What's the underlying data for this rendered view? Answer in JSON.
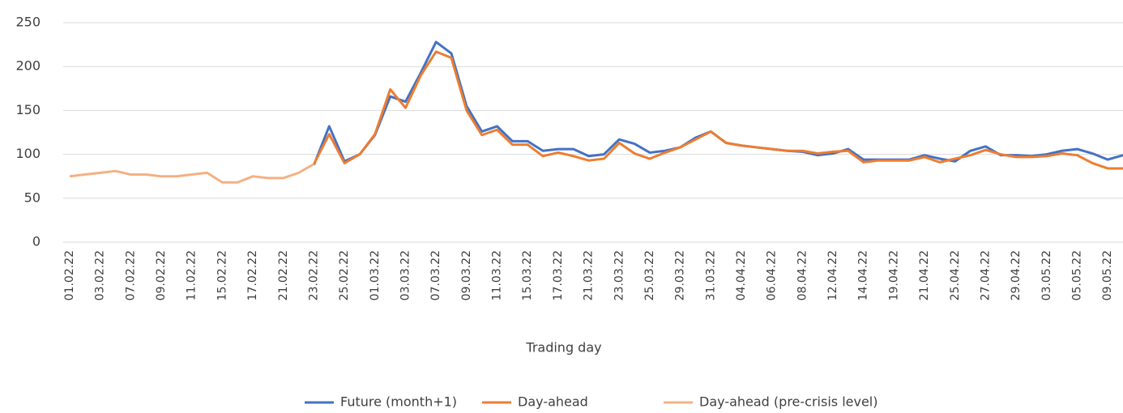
{
  "chart_data": {
    "type": "line",
    "x_label": "Trading day",
    "categories": [
      "01.02.22",
      null,
      "03.02.22",
      null,
      "07.02.22",
      null,
      "09.02.22",
      null,
      "11.02.22",
      null,
      "15.02.22",
      null,
      "17.02.22",
      null,
      "21.02.22",
      null,
      "23.02.22",
      null,
      "25.02.22",
      null,
      "01.03.22",
      null,
      "03.03.22",
      null,
      "07.03.22",
      null,
      "09.03.22",
      null,
      "11.03.22",
      null,
      "15.03.22",
      null,
      "17.03.22",
      null,
      "21.03.22",
      null,
      "23.03.22",
      null,
      "25.03.22",
      null,
      "29.03.22",
      null,
      "31.03.22",
      null,
      "04.04.22",
      null,
      "06.04.22",
      null,
      "08.04.22",
      null,
      "12.04.22",
      null,
      "14.04.22",
      null,
      "19.04.22",
      null,
      "21.04.22",
      null,
      "25.04.22",
      null,
      "27.04.22",
      null,
      "29.04.22",
      null,
      "03.05.22",
      null,
      "05.05.22",
      null,
      "09.05.22",
      null
    ],
    "series": [
      {
        "name": "Future (month+1)",
        "color": "#4472c4",
        "values": [
          null,
          null,
          null,
          null,
          null,
          null,
          null,
          null,
          null,
          null,
          null,
          null,
          null,
          null,
          null,
          null,
          88,
          132,
          92,
          100,
          122,
          166,
          160,
          193,
          228,
          215,
          155,
          126,
          132,
          115,
          115,
          104,
          106,
          106,
          98,
          100,
          117,
          112,
          102,
          104,
          108,
          119,
          126,
          113,
          110,
          108,
          106,
          104,
          103,
          99,
          101,
          106,
          94,
          94,
          94,
          94,
          99,
          95,
          92,
          104,
          109,
          99,
          99,
          98,
          100,
          104,
          106,
          101,
          94,
          99
        ]
      },
      {
        "name": "Day-ahead",
        "color": "#ed7d31",
        "values": [
          null,
          null,
          null,
          null,
          null,
          null,
          null,
          null,
          null,
          null,
          null,
          null,
          null,
          null,
          null,
          null,
          89,
          123,
          90,
          100,
          123,
          174,
          153,
          190,
          217,
          210,
          150,
          122,
          128,
          111,
          111,
          98,
          102,
          98,
          93,
          95,
          113,
          101,
          95,
          102,
          108,
          117,
          126,
          113,
          110,
          108,
          106,
          104,
          104,
          101,
          103,
          104,
          91,
          93,
          93,
          93,
          97,
          91,
          95,
          99,
          105,
          100,
          97,
          97,
          98,
          101,
          99,
          90,
          84,
          84
        ]
      },
      {
        "name": "Day-ahead (pre-crisis level)",
        "color": "#f4b183",
        "values": [
          75,
          77,
          79,
          81,
          77,
          77,
          75,
          75,
          77,
          79,
          68,
          68,
          75,
          73,
          73,
          79,
          89,
          null,
          null,
          null,
          null,
          null,
          null,
          null,
          null,
          null,
          null,
          null,
          null,
          null,
          null,
          null,
          null,
          null,
          null,
          null,
          null,
          null,
          null,
          null,
          null,
          null,
          null,
          null,
          null,
          null,
          null,
          null,
          null,
          null,
          null,
          null,
          null,
          null,
          null,
          null,
          null,
          null,
          null,
          null,
          null,
          null,
          null,
          null,
          null,
          null,
          null,
          null,
          null,
          null
        ]
      }
    ],
    "ylim": [
      0,
      250
    ],
    "yticks": [
      0,
      50,
      100,
      150,
      200,
      250
    ],
    "grid": true,
    "legend": "bottom"
  }
}
